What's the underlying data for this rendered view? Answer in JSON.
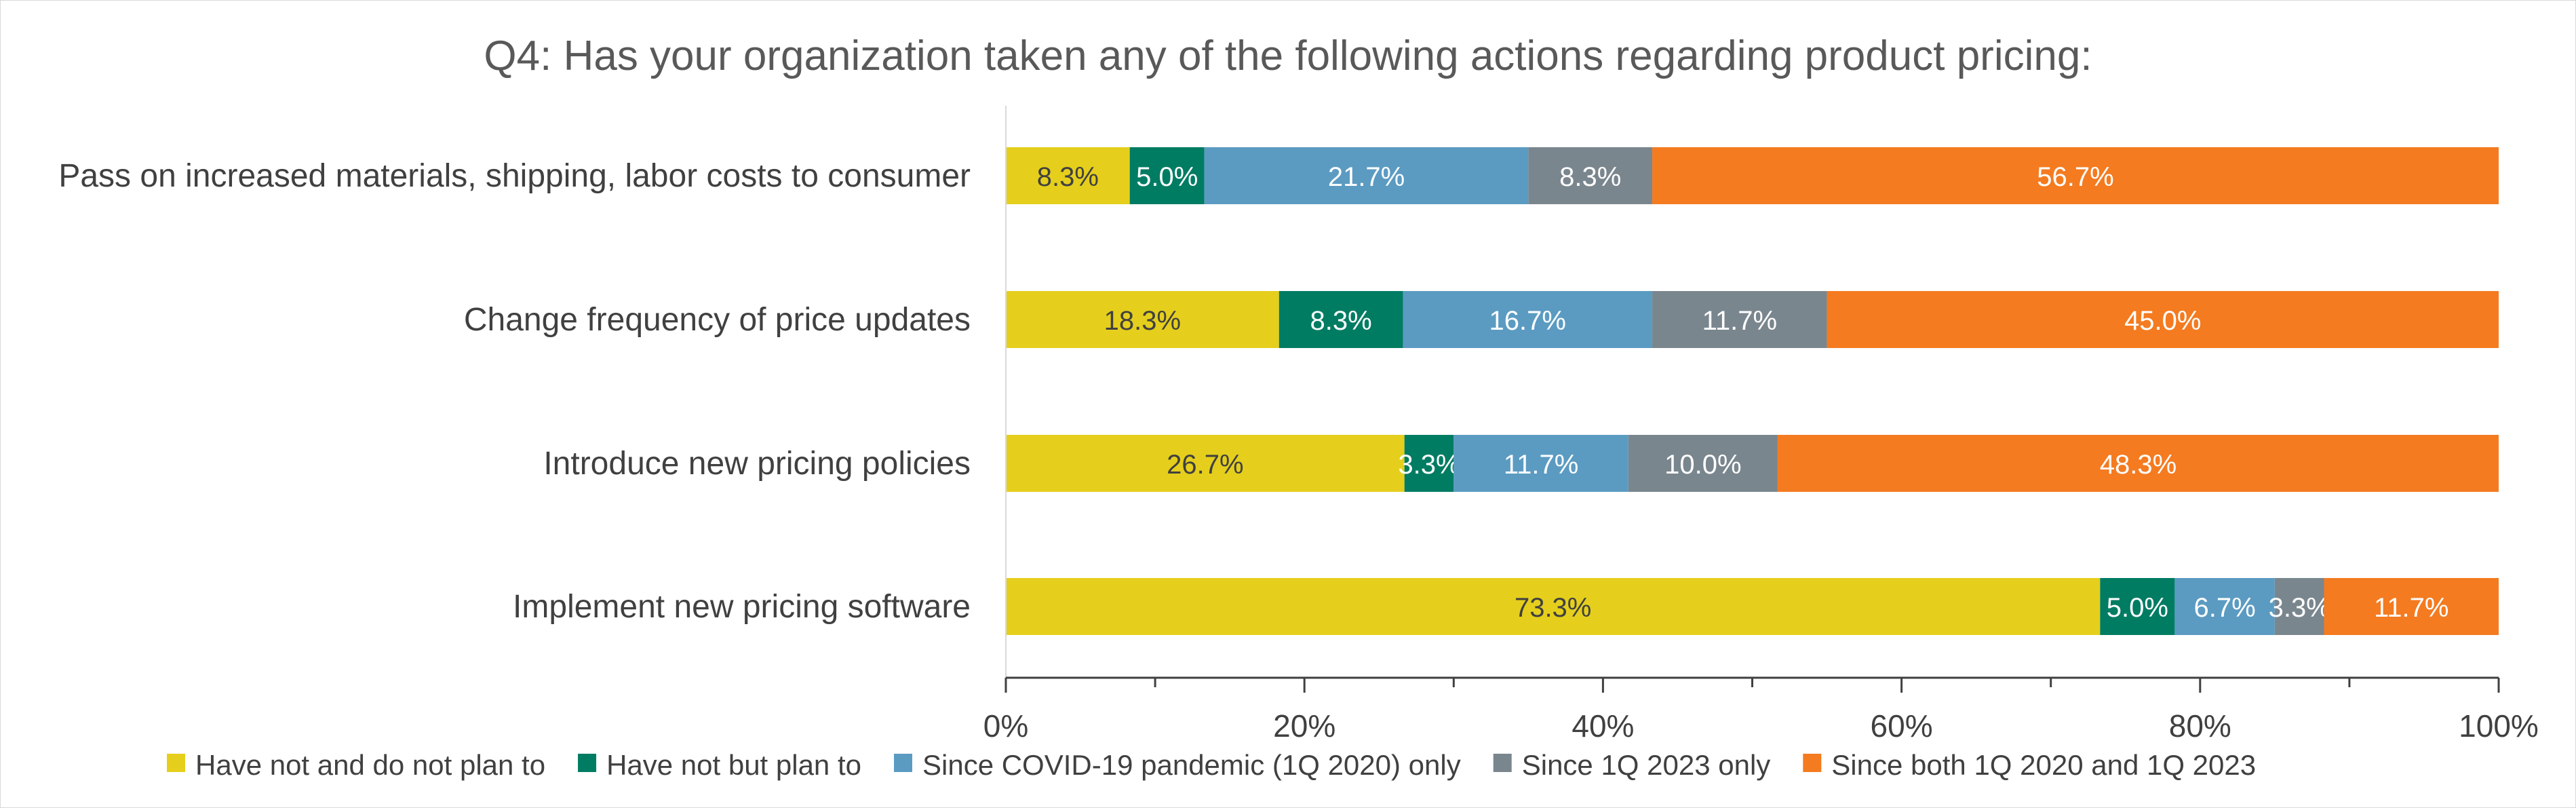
{
  "chart_data": {
    "type": "bar",
    "orientation": "horizontal",
    "stacked": true,
    "percent_stacked": true,
    "title": "Q4: Has your organization taken any of the following actions regarding product pricing:",
    "categories": [
      "Pass on increased materials, shipping, labor costs to consumer",
      "Change frequency of price updates",
      "Introduce new pricing policies",
      "Implement new pricing software"
    ],
    "series": [
      {
        "name": "Have not and do not plan to",
        "color": "#E5CF1C",
        "label_color": "#404040",
        "values": [
          8.3,
          18.3,
          26.7,
          73.3
        ],
        "labels": [
          "8.3%",
          "18.3%",
          "26.7%",
          "73.3%"
        ]
      },
      {
        "name": "Have not but plan to",
        "color": "#007C63",
        "label_color": "#ffffff",
        "values": [
          5.0,
          8.3,
          3.3,
          5.0
        ],
        "labels": [
          "5.0%",
          "8.3%",
          "3.3%",
          "5.0%"
        ]
      },
      {
        "name": "Since COVID-19 pandemic (1Q 2020) only",
        "color": "#5B9BC2",
        "label_color": "#ffffff",
        "values": [
          21.7,
          16.7,
          11.7,
          6.7
        ],
        "labels": [
          "21.7%",
          "16.7%",
          "11.7%",
          "6.7%"
        ]
      },
      {
        "name": "Since 1Q 2023 only",
        "color": "#7A868E",
        "label_color": "#ffffff",
        "values": [
          8.3,
          11.7,
          10.0,
          3.3
        ],
        "labels": [
          "8.3%",
          "11.7%",
          "10.0%",
          "3.3%"
        ]
      },
      {
        "name": "Since both 1Q 2020 and 1Q 2023",
        "color": "#F47B20",
        "label_color": "#ffffff",
        "values": [
          56.7,
          45.0,
          48.3,
          11.7
        ],
        "labels": [
          "56.7%",
          "45.0%",
          "48.3%",
          "11.7%"
        ]
      }
    ],
    "xlim": [
      0,
      100
    ],
    "x_ticks": [
      0,
      20,
      40,
      60,
      80,
      100
    ],
    "x_tick_labels": [
      "0%",
      "20%",
      "40%",
      "60%",
      "80%",
      "100%"
    ],
    "grid": false,
    "legend_position": "bottom"
  }
}
